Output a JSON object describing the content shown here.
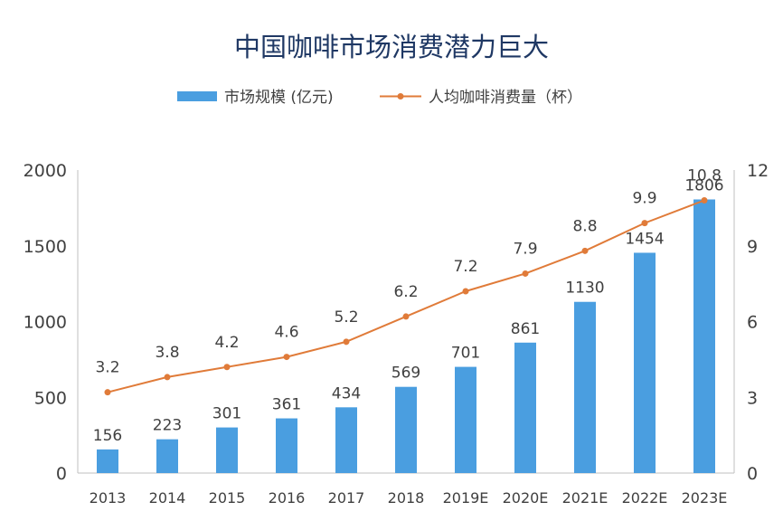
{
  "chart_data": {
    "type": "bar",
    "title": "中国咖啡市场消费潜力巨大",
    "categories": [
      "2013",
      "2014",
      "2015",
      "2016",
      "2017",
      "2018",
      "2019E",
      "2020E",
      "2021E",
      "2022E",
      "2023E"
    ],
    "series": [
      {
        "name": "市场规模 (亿元)",
        "type": "bar",
        "axis": "left",
        "color": "#4a9ee0",
        "values": [
          156,
          223,
          301,
          361,
          434,
          569,
          701,
          861,
          1130,
          1454,
          1806
        ]
      },
      {
        "name": "人均咖啡消费量（杯）",
        "type": "line",
        "axis": "right",
        "color": "#e07b39",
        "values": [
          3.2,
          3.8,
          4.2,
          4.6,
          5.2,
          6.2,
          7.2,
          7.9,
          8.8,
          9.9,
          10.8
        ]
      }
    ],
    "y_left": {
      "lim": [
        0,
        2000
      ],
      "ticks": [
        0,
        500,
        1000,
        1500,
        2000
      ]
    },
    "y_right": {
      "lim": [
        0,
        12
      ],
      "ticks": [
        0,
        3,
        6,
        9,
        12
      ]
    },
    "legend_position": "top-center",
    "grid": false
  }
}
